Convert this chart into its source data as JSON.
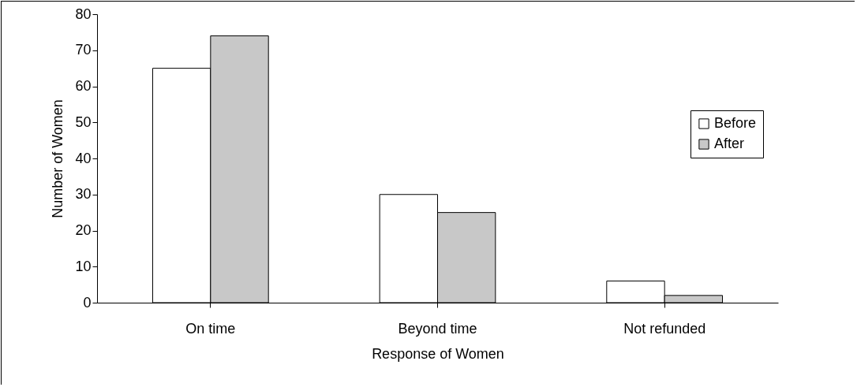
{
  "chart_data": {
    "type": "bar",
    "xlabel": "Response of Women",
    "ylabel": "Number of Women",
    "categories": [
      "On time",
      "Beyond time",
      "Not refunded"
    ],
    "series": [
      {
        "name": "Before",
        "color": "#ffffff",
        "values": [
          65,
          30,
          6
        ]
      },
      {
        "name": "After",
        "color": "#c8c8c8",
        "values": [
          74,
          25,
          2
        ]
      }
    ],
    "ylim": [
      0,
      80
    ],
    "yticks": [
      0,
      10,
      20,
      30,
      40,
      50,
      60,
      70,
      80
    ],
    "legend": "right"
  }
}
